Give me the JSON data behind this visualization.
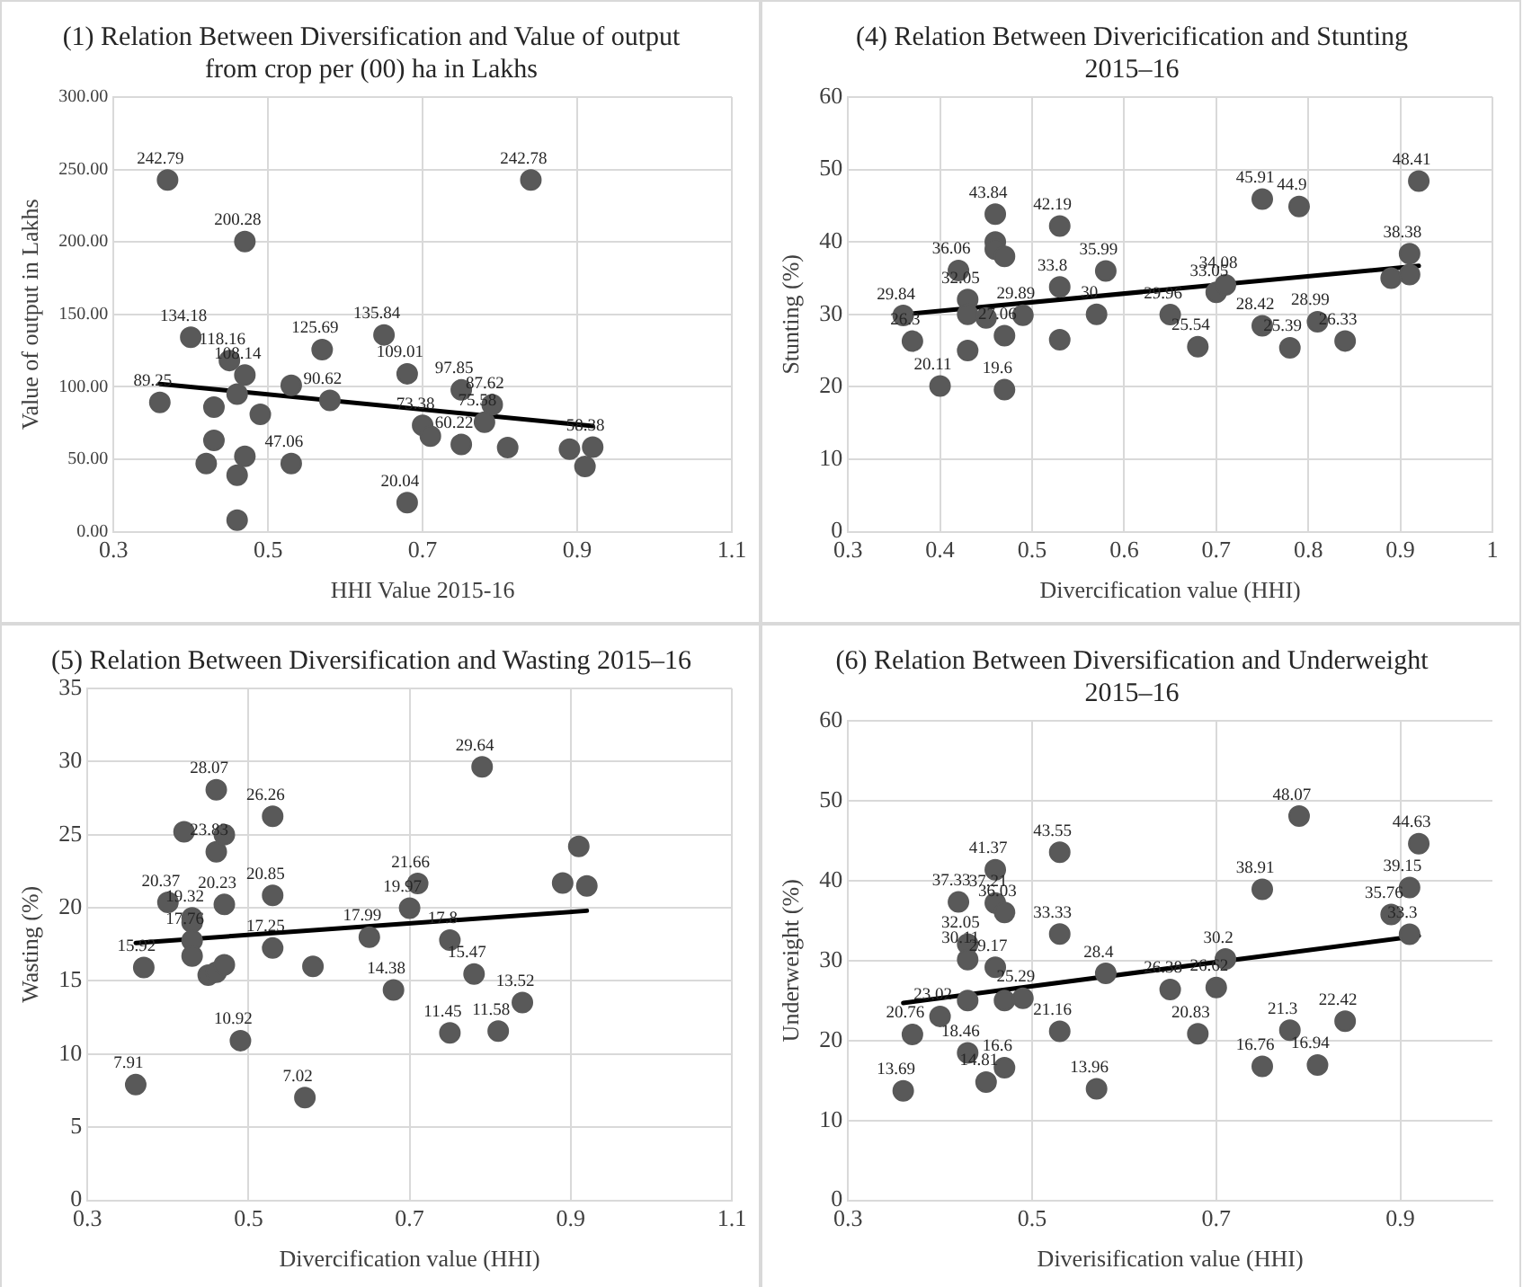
{
  "chart_data": [
    {
      "type": "scatter",
      "title": "(1) Relation Between Diversification and Value of output from crop per (00) ha in Lakhs",
      "xlabel": "HHI Value 2015-16",
      "ylabel": "Value of output in Lakhs",
      "xlim": [
        0.3,
        1.1
      ],
      "xticks": [
        0.3,
        0.5,
        0.7,
        0.9,
        1.1
      ],
      "ylim": [
        0,
        300
      ],
      "yticks": [
        {
          "value": 0,
          "label": "0.00"
        },
        {
          "value": 50,
          "label": "50.00"
        },
        {
          "value": 100,
          "label": "100.00"
        },
        {
          "value": 150,
          "label": "150.00"
        },
        {
          "value": 200,
          "label": "200.00"
        },
        {
          "value": 250,
          "label": "250.00"
        },
        {
          "value": 300,
          "label": "300.00"
        }
      ],
      "grid": true,
      "marker": "circle",
      "series": [
        {
          "color": "#595959",
          "x": [
            0.36,
            0.37,
            0.4,
            0.45,
            0.47,
            0.43,
            0.46,
            0.43,
            0.42,
            0.47,
            0.49,
            0.46,
            0.46,
            0.47,
            0.53,
            0.53,
            0.57,
            0.58,
            0.65,
            0.68,
            0.68,
            0.7,
            0.71,
            0.75,
            0.75,
            0.78,
            0.79,
            0.81,
            0.84,
            0.89,
            0.92,
            0.91
          ],
          "values": [
            89.25,
            242.79,
            134.18,
            118.16,
            108.14,
            86,
            95,
            63,
            47,
            52,
            81,
            39,
            8,
            200.28,
            101,
            47.06,
            125.69,
            90.62,
            135.84,
            109.01,
            20.04,
            73.38,
            66,
            97.85,
            60.22,
            75.58,
            87.62,
            58,
            242.78,
            57,
            58.38,
            45
          ],
          "value_labels": [
            "89.25",
            "242.79",
            "134.18",
            "118.16",
            "108.14",
            null,
            null,
            null,
            null,
            null,
            null,
            null,
            null,
            "200.28",
            null,
            "47.06",
            "125.69",
            "90.62",
            "135.84",
            "109.01",
            "20.04",
            "73.38",
            null,
            "97.85",
            "60.22",
            "75.58",
            "87.62",
            null,
            "242.78",
            null,
            "58.38",
            null
          ]
        },
        {
          "type": "line",
          "color": "#000000",
          "marker": "none",
          "x": [
            0.36,
            0.92
          ],
          "values": [
            102,
            73
          ]
        }
      ]
    },
    {
      "type": "scatter",
      "title": "(4) Relation Between Divericification and Stunting 2015–16",
      "xlabel": "Divercification value (HHI)",
      "ylabel": "Stunting (%)",
      "xlim": [
        0.3,
        1
      ],
      "xticks": [
        0.3,
        0.4,
        0.5,
        0.6,
        0.7,
        0.8,
        0.9,
        1
      ],
      "ylim": [
        0,
        60
      ],
      "yticks": [
        0,
        10,
        20,
        30,
        40,
        50,
        60
      ],
      "grid": true,
      "marker": "circle",
      "series": [
        {
          "color": "#595959",
          "x": [
            0.36,
            0.37,
            0.4,
            0.42,
            0.43,
            0.43,
            0.43,
            0.45,
            0.46,
            0.46,
            0.46,
            0.47,
            0.47,
            0.47,
            0.49,
            0.53,
            0.53,
            0.53,
            0.57,
            0.58,
            0.65,
            0.68,
            0.7,
            0.71,
            0.75,
            0.75,
            0.79,
            0.78,
            0.81,
            0.84,
            0.89,
            0.91,
            0.91,
            0.92
          ],
          "values": [
            29.84,
            26.3,
            20.11,
            36.06,
            32.05,
            30,
            25,
            29.5,
            40,
            39,
            43.84,
            38,
            27.06,
            19.6,
            29.89,
            42.19,
            33.8,
            26.5,
            30,
            35.99,
            29.96,
            25.54,
            33.05,
            34.08,
            45.91,
            28.42,
            44.9,
            25.39,
            28.99,
            26.33,
            35,
            38.38,
            35.5,
            48.41
          ],
          "value_labels": [
            "29.84",
            "26.3",
            "20.11",
            "36.06",
            "32.05",
            null,
            null,
            null,
            null,
            null,
            "43.84",
            null,
            "27.06",
            "19.6",
            "29.89",
            "42.19",
            "33.8",
            null,
            "30",
            "35.99",
            "29.96",
            "25.54",
            "33.05",
            "34.08",
            "45.91",
            "28.42",
            "44.9",
            "25.39",
            "28.99",
            "26.33",
            null,
            "38.38",
            null,
            "48.41"
          ]
        },
        {
          "type": "line",
          "color": "#000000",
          "marker": "none",
          "x": [
            0.36,
            0.92
          ],
          "values": [
            30,
            36.7
          ]
        }
      ]
    },
    {
      "type": "scatter",
      "title": "(5) Relation Between Diversification and Wasting 2015–16",
      "xlabel": "Divercification value (HHI)",
      "ylabel": "Wasting (%)",
      "xlim": [
        0.3,
        1.1
      ],
      "xticks": [
        0.3,
        0.5,
        0.7,
        0.9,
        1.1
      ],
      "ylim": [
        0,
        35
      ],
      "yticks": [
        0,
        5,
        10,
        15,
        20,
        25,
        30,
        35
      ],
      "grid": true,
      "marker": "circle",
      "series": [
        {
          "color": "#595959",
          "x": [
            0.36,
            0.37,
            0.4,
            0.42,
            0.43,
            0.43,
            0.43,
            0.43,
            0.45,
            0.46,
            0.46,
            0.46,
            0.47,
            0.47,
            0.47,
            0.49,
            0.53,
            0.53,
            0.53,
            0.57,
            0.58,
            0.65,
            0.68,
            0.7,
            0.71,
            0.75,
            0.75,
            0.78,
            0.79,
            0.81,
            0.84,
            0.89,
            0.91,
            0.92
          ],
          "values": [
            7.91,
            15.92,
            20.37,
            25.2,
            19.32,
            19,
            17.76,
            16.7,
            15.4,
            28.07,
            23.83,
            15.6,
            25,
            20.23,
            16.1,
            10.92,
            26.26,
            20.85,
            17.25,
            7.02,
            16,
            17.99,
            14.38,
            19.97,
            21.66,
            17.8,
            11.45,
            15.47,
            29.64,
            11.58,
            13.52,
            21.7,
            24.2,
            21.5
          ],
          "value_labels": [
            "7.91",
            "15.92",
            "20.37",
            null,
            "19.32",
            null,
            "17.76",
            null,
            null,
            "28.07",
            "23.83",
            null,
            null,
            "20.23",
            null,
            "10.92",
            "26.26",
            "20.85",
            "17.25",
            "7.02",
            null,
            "17.99",
            "14.38",
            "19.97",
            "21.66",
            "17.8",
            "11.45",
            "15.47",
            "29.64",
            "11.58",
            "13.52",
            null,
            null,
            null
          ]
        },
        {
          "type": "line",
          "color": "#000000",
          "marker": "none",
          "x": [
            0.36,
            0.92
          ],
          "values": [
            17.6,
            19.8
          ]
        }
      ]
    },
    {
      "type": "scatter",
      "title": "(6) Relation Between Diversification and Underweight 2015–16",
      "xlabel": "Diverisification value (HHI)",
      "ylabel": "Underweight (%)",
      "xlim": [
        0.3,
        1.0
      ],
      "xticks": [
        0.3,
        0.5,
        0.7,
        0.9
      ],
      "ylim": [
        0,
        60
      ],
      "yticks": [
        0,
        10,
        20,
        30,
        40,
        50,
        60
      ],
      "grid": true,
      "marker": "circle",
      "series": [
        {
          "color": "#595959",
          "x": [
            0.36,
            0.37,
            0.4,
            0.42,
            0.43,
            0.43,
            0.43,
            0.43,
            0.45,
            0.46,
            0.46,
            0.46,
            0.47,
            0.47,
            0.47,
            0.49,
            0.53,
            0.53,
            0.53,
            0.57,
            0.58,
            0.65,
            0.68,
            0.7,
            0.71,
            0.75,
            0.75,
            0.78,
            0.79,
            0.81,
            0.84,
            0.89,
            0.91,
            0.91,
            0.92
          ],
          "values": [
            13.69,
            20.76,
            23.02,
            37.33,
            32.05,
            30.11,
            25,
            18.46,
            14.81,
            41.37,
            37.21,
            29.17,
            36.03,
            25,
            16.6,
            25.29,
            43.55,
            33.33,
            21.16,
            13.96,
            28.4,
            26.38,
            20.83,
            26.62,
            30.2,
            38.91,
            16.76,
            21.3,
            48.07,
            16.94,
            22.42,
            35.76,
            39.15,
            33.3,
            44.63
          ],
          "value_labels": [
            "13.69",
            "20.76",
            "23.02",
            "37.33",
            "32.05",
            "30.11",
            null,
            "18.46",
            "14.81",
            "41.37",
            "37.21",
            "29.17",
            "36.03",
            null,
            "16.6",
            "25.29",
            "43.55",
            "33.33",
            "21.16",
            "13.96",
            "28.4",
            "26.38",
            "20.83",
            "26.62",
            "30.2",
            "38.91",
            "16.76",
            "21.3",
            "48.07",
            "16.94",
            "22.42",
            "35.76",
            "39.15",
            "33.3",
            "44.63"
          ]
        },
        {
          "type": "line",
          "color": "#000000",
          "marker": "none",
          "x": [
            0.36,
            0.92
          ],
          "values": [
            24.7,
            33.1
          ]
        }
      ]
    }
  ]
}
